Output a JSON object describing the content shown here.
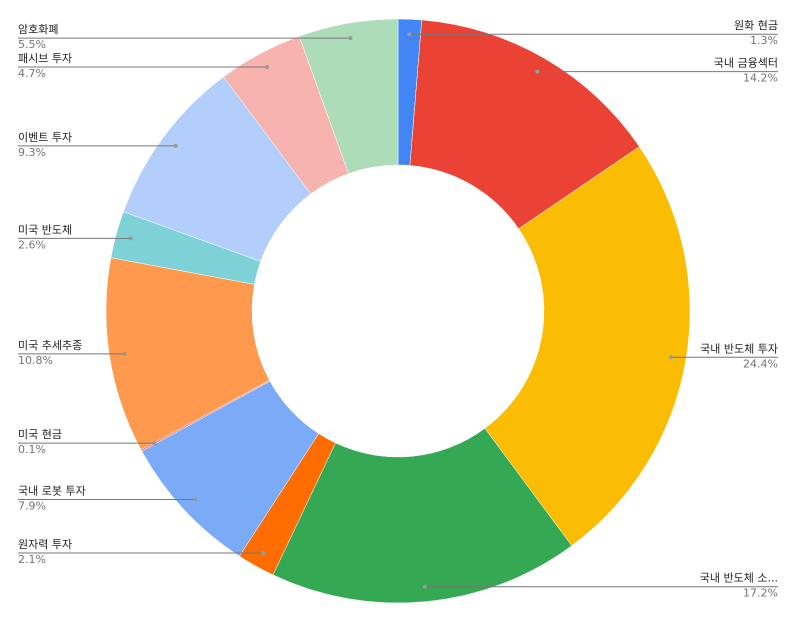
{
  "chart_data": {
    "type": "donut",
    "categories": [
      "원화 현금",
      "국내 금융섹터",
      "국내 반도체 투자",
      "국내 반도체 소...",
      "원자력 투자",
      "국내 로봇 투자",
      "미국 현금",
      "미국 추세추종",
      "미국 반도체",
      "이벤트 투자",
      "패시브 투자",
      "암호화폐"
    ],
    "values": [
      1.3,
      14.2,
      24.4,
      17.2,
      2.1,
      7.9,
      0.1,
      10.8,
      2.6,
      9.3,
      4.7,
      5.5
    ],
    "value_labels": [
      "1.3%",
      "14.2%",
      "24.4%",
      "17.2%",
      "2.1%",
      "7.9%",
      "0.1%",
      "10.8%",
      "2.6%",
      "9.3%",
      "4.7%",
      "5.5%"
    ],
    "colors": [
      "#4285f4",
      "#ea4335",
      "#fbbc04",
      "#34a853",
      "#ff6d01",
      "#7baaf7",
      "#f07b72",
      "#ff994d",
      "#7ed1d7",
      "#b3cefb",
      "#f7b4ae",
      "#addcb8"
    ]
  }
}
